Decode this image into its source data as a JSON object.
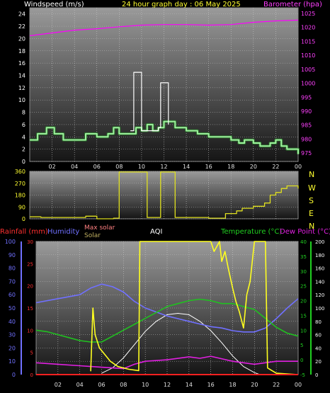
{
  "header": {
    "left": "Windspeed (m/s)",
    "center": "24 hour graph day : 06 May 2025",
    "right": "Barometer (hpa)"
  },
  "colors": {
    "wind": "#9ef09e",
    "gust": "#ffffff",
    "baro": "#ff00ff",
    "dir": "#e0e020",
    "rain": "#ff2020",
    "humidity": "#7070ff",
    "maxsolar": "#ffffff",
    "solar": "#ffff20",
    "temp": "#20c020",
    "dew": "#e020e0",
    "grid_bg_top": "#9a9a9a",
    "grid_bg_bottom": "#151515"
  },
  "x_ticks": [
    "02",
    "04",
    "06",
    "08",
    "10",
    "12",
    "14",
    "16",
    "18",
    "20",
    "22",
    "00"
  ],
  "legend": {
    "rainfall": "Rainfall (mm)",
    "humidity": "Humidity",
    "max_solar": "Max solar",
    "solar": "Solar",
    "aqi": "AQI",
    "temperature": "Temperature (°C)",
    "dew_point": "Dew Point (°C)"
  },
  "compass": [
    "N",
    "W",
    "S",
    "E",
    "N"
  ],
  "chart_data": [
    {
      "type": "line",
      "name": "windspeed_barometer",
      "x_range_hours": [
        0,
        24
      ],
      "y_left": {
        "label": "Windspeed (m/s)",
        "ticks": [
          "0",
          "2",
          "4",
          "6",
          "8",
          "10",
          "12",
          "14",
          "16",
          "18",
          "20",
          "22",
          "24"
        ],
        "lim": [
          0,
          25
        ]
      },
      "y_right": {
        "label": "Barometer (hpa)",
        "ticks": [
          "975",
          "980",
          "985",
          "990",
          "995",
          "1000",
          "1005",
          "1010",
          "1015",
          "1020",
          "1025"
        ],
        "lim": [
          972,
          1027
        ]
      },
      "series": [
        {
          "name": "Windspeed",
          "axis": "left",
          "points": [
            [
              0,
              3.5
            ],
            [
              0.7,
              4.5
            ],
            [
              1.5,
              5.5
            ],
            [
              2.2,
              4.5
            ],
            [
              3,
              3.5
            ],
            [
              4,
              3.5
            ],
            [
              5,
              4.5
            ],
            [
              6,
              4
            ],
            [
              7,
              4.5
            ],
            [
              7.5,
              5.5
            ],
            [
              8,
              4.5
            ],
            [
              9,
              4.5
            ],
            [
              9.5,
              5.5
            ],
            [
              10,
              5
            ],
            [
              10.5,
              6
            ],
            [
              11,
              5
            ],
            [
              11.5,
              5.5
            ],
            [
              12,
              6.5
            ],
            [
              13,
              5.5
            ],
            [
              14,
              5
            ],
            [
              15,
              4.5
            ],
            [
              16,
              4
            ],
            [
              17,
              4
            ],
            [
              18,
              3.5
            ],
            [
              18.7,
              3
            ],
            [
              19.2,
              3.5
            ],
            [
              20,
              3
            ],
            [
              20.6,
              2.5
            ],
            [
              21.5,
              3
            ],
            [
              22,
              3.5
            ],
            [
              22.5,
              2.5
            ],
            [
              23,
              2
            ],
            [
              24,
              1.2
            ]
          ]
        },
        {
          "name": "Gust",
          "axis": "left",
          "points": [
            [
              9,
              5
            ],
            [
              9.3,
              14.5
            ],
            [
              9.8,
              14.5
            ],
            [
              10,
              5
            ],
            [
              11.5,
              5.5
            ],
            [
              11.7,
              12.8
            ],
            [
              12.2,
              12.8
            ],
            [
              12.4,
              6
            ]
          ]
        },
        {
          "name": "Barometer",
          "axis": "right",
          "points": [
            [
              0,
              1017
            ],
            [
              2,
              1018
            ],
            [
              4,
              1019
            ],
            [
              6,
              1019.5
            ],
            [
              8,
              1020.2
            ],
            [
              10,
              1020.8
            ],
            [
              12,
              1021
            ],
            [
              14,
              1021
            ],
            [
              16,
              1020.8
            ],
            [
              18,
              1021
            ],
            [
              20,
              1021.8
            ],
            [
              22,
              1022.3
            ],
            [
              24,
              1022.6
            ]
          ]
        }
      ]
    },
    {
      "type": "line",
      "name": "wind_direction",
      "x_range_hours": [
        0,
        24
      ],
      "y_left": {
        "ticks": [
          "0",
          "90",
          "180",
          "270",
          "360"
        ],
        "lim": [
          0,
          360
        ]
      },
      "series": [
        {
          "name": "Direction",
          "points": [
            [
              0,
              15
            ],
            [
              1,
              10
            ],
            [
              3,
              10
            ],
            [
              5,
              20
            ],
            [
              6,
              0
            ],
            [
              7.5,
              5
            ],
            [
              8,
              355
            ],
            [
              10.3,
              355
            ],
            [
              10.5,
              10
            ],
            [
              11.5,
              10
            ],
            [
              11.7,
              355
            ],
            [
              12.8,
              355
            ],
            [
              13,
              10
            ],
            [
              15,
              10
            ],
            [
              16,
              5
            ],
            [
              17,
              5
            ],
            [
              17.5,
              40
            ],
            [
              18.5,
              60
            ],
            [
              19,
              80
            ],
            [
              20,
              95
            ],
            [
              21,
              120
            ],
            [
              21.5,
              180
            ],
            [
              22,
              200
            ],
            [
              22.5,
              230
            ],
            [
              23,
              250
            ],
            [
              24,
              230
            ]
          ]
        }
      ]
    },
    {
      "type": "line",
      "name": "rain_humidity_solar_temp",
      "x_range_hours": [
        0,
        24
      ],
      "y_rain": {
        "label": "Rainfall (mm)",
        "ticks": [
          "0",
          "5",
          "10",
          "15",
          "20",
          "25",
          "30"
        ],
        "lim": [
          0,
          30
        ]
      },
      "y_humidity": {
        "label": "Humidity",
        "ticks": [
          "0",
          "10",
          "20",
          "30",
          "40",
          "50",
          "60",
          "70",
          "80",
          "90",
          "100"
        ],
        "lim": [
          0,
          100
        ]
      },
      "y_temp": {
        "label": "Temperature (°C)",
        "ticks": [
          "-5",
          "0",
          "5",
          "10",
          "15",
          "20",
          "25",
          "30",
          "35",
          "40"
        ],
        "lim": [
          -5,
          40
        ]
      },
      "y_solar": {
        "ticks": [
          "0",
          "20",
          "40",
          "60",
          "80",
          "100",
          "120",
          "140",
          "160",
          "180",
          "200"
        ],
        "lim": [
          0,
          200
        ]
      },
      "series": [
        {
          "name": "Humidity",
          "axis": "humidity",
          "points": [
            [
              0,
              54
            ],
            [
              2,
              57
            ],
            [
              4,
              60
            ],
            [
              5,
              65
            ],
            [
              6,
              68
            ],
            [
              7,
              66
            ],
            [
              8,
              62
            ],
            [
              9,
              55
            ],
            [
              10,
              50
            ],
            [
              11,
              47
            ],
            [
              12,
              44
            ],
            [
              13,
              42
            ],
            [
              14,
              40
            ],
            [
              15,
              38
            ],
            [
              16,
              36
            ],
            [
              17,
              35
            ],
            [
              18,
              33
            ],
            [
              19,
              32
            ],
            [
              20,
              32
            ],
            [
              21,
              35
            ],
            [
              22,
              42
            ],
            [
              23,
              50
            ],
            [
              24,
              57
            ]
          ]
        },
        {
          "name": "Temperature",
          "axis": "temp",
          "points": [
            [
              0,
              10
            ],
            [
              1,
              9.5
            ],
            [
              2,
              8.5
            ],
            [
              3,
              7.5
            ],
            [
              4,
              6.5
            ],
            [
              5,
              6
            ],
            [
              6,
              6
            ],
            [
              7,
              8
            ],
            [
              8,
              10
            ],
            [
              9,
              12
            ],
            [
              10,
              14
            ],
            [
              11,
              16
            ],
            [
              12,
              18
            ],
            [
              13,
              19
            ],
            [
              14,
              20
            ],
            [
              15,
              20.5
            ],
            [
              16,
              20
            ],
            [
              17,
              19
            ],
            [
              18,
              19
            ],
            [
              19,
              18
            ],
            [
              20,
              17
            ],
            [
              21,
              14
            ],
            [
              22,
              11
            ],
            [
              23,
              9
            ],
            [
              24,
              8
            ]
          ]
        },
        {
          "name": "Dew Point",
          "axis": "temp",
          "points": [
            [
              0,
              -1
            ],
            [
              2,
              -1.5
            ],
            [
              4,
              -2
            ],
            [
              6,
              -2.5
            ],
            [
              8,
              -3
            ],
            [
              9,
              -1.5
            ],
            [
              10,
              -0.5
            ],
            [
              12,
              0
            ],
            [
              14,
              1
            ],
            [
              15,
              0.5
            ],
            [
              16,
              1.2
            ],
            [
              18,
              -0.5
            ],
            [
              20,
              -1.5
            ],
            [
              22,
              -0.5
            ],
            [
              24,
              -0.5
            ]
          ]
        },
        {
          "name": "Max solar",
          "axis": "solar",
          "points": [
            [
              6,
              2
            ],
            [
              7,
              10
            ],
            [
              8,
              25
            ],
            [
              9,
              45
            ],
            [
              10,
              65
            ],
            [
              11,
              80
            ],
            [
              12,
              90
            ],
            [
              13,
              92
            ],
            [
              14,
              90
            ],
            [
              15,
              80
            ],
            [
              16,
              66
            ],
            [
              17,
              48
            ],
            [
              18,
              28
            ],
            [
              19,
              12
            ],
            [
              20,
              3
            ],
            [
              20.5,
              0
            ]
          ]
        },
        {
          "name": "Solar",
          "axis": "solar",
          "points": [
            [
              5,
              5
            ],
            [
              5.2,
              100
            ],
            [
              5.4,
              60
            ],
            [
              5.8,
              40
            ],
            [
              6.3,
              30
            ],
            [
              6.8,
              20
            ],
            [
              7.5,
              12
            ],
            [
              8.5,
              8
            ],
            [
              9.4,
              6
            ],
            [
              9.5,
              200
            ],
            [
              14,
              200
            ],
            [
              16,
              200
            ],
            [
              16.3,
              185
            ],
            [
              16.8,
              200
            ],
            [
              17,
              170
            ],
            [
              17.3,
              185
            ],
            [
              17.6,
              160
            ],
            [
              18,
              130
            ],
            [
              18.3,
              110
            ],
            [
              18.6,
              95
            ],
            [
              19,
              70
            ],
            [
              19.3,
              120
            ],
            [
              19.6,
              140
            ],
            [
              20,
              200
            ],
            [
              21,
              200
            ],
            [
              21.2,
              10
            ],
            [
              22,
              2
            ],
            [
              24,
              0
            ]
          ]
        },
        {
          "name": "Rainfall",
          "axis": "rain",
          "points": [
            [
              0,
              0
            ],
            [
              24,
              0
            ]
          ]
        }
      ]
    }
  ]
}
